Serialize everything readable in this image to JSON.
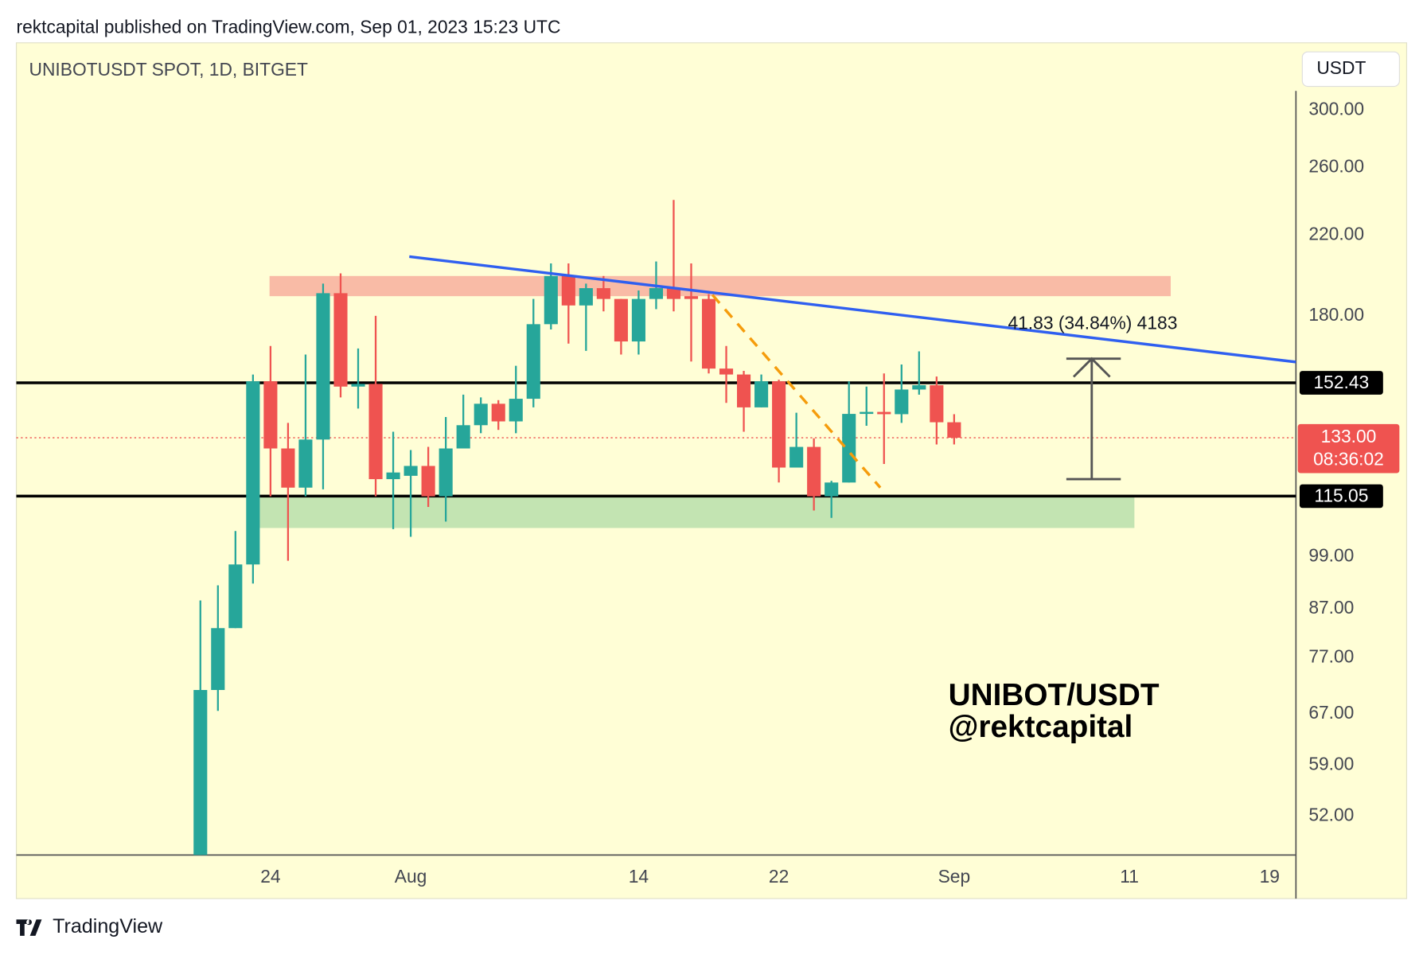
{
  "header": "rektcapital published on TradingView.com, Sep 01, 2023 15:23 UTC",
  "footer": "TradingView",
  "chart_data": {
    "type": "candlestick",
    "title": "UNIBOTUSDT SPOT, 1D, BITGET",
    "currency": "USDT",
    "watermark": [
      "UNIBOT/USDT",
      "@rektcapital"
    ],
    "log_scale": true,
    "grid": false,
    "up_color": "#26a69a",
    "down_color": "#ef5350",
    "categories": [
      null,
      null,
      null,
      null,
      null,
      null,
      null,
      null,
      null,
      null,
      null,
      null,
      null,
      null,
      "24",
      null,
      null,
      null,
      null,
      null,
      null,
      null,
      "Aug",
      null,
      null,
      null,
      null,
      null,
      null,
      null,
      null,
      null,
      null,
      null,
      null,
      "14",
      null,
      null,
      null,
      null,
      null,
      null,
      null,
      "22",
      null,
      null,
      null,
      null,
      null,
      null,
      null,
      null,
      null,
      "Sep",
      null,
      null,
      null,
      null,
      null,
      null,
      null,
      null,
      null,
      "11",
      null,
      null,
      null,
      null,
      null,
      null,
      null,
      "19",
      null
    ],
    "open": [
      null,
      null,
      null,
      null,
      null,
      null,
      null,
      null,
      null,
      null,
      45,
      71.1,
      82.9,
      97.1,
      153,
      129.5,
      117.5,
      132.4,
      190.4,
      151,
      152,
      120,
      121,
      124,
      115,
      129.5,
      137.2,
      144.7,
      138.5,
      146.5,
      176.3,
      198.7,
      184.7,
      192.8,
      187.7,
      168.9,
      187.7,
      192.8,
      189,
      187.7,
      157.9,
      155.6,
      143.4,
      153,
      123.5,
      130,
      115,
      119,
      141.1,
      141.8,
      141,
      149.9,
      151.5,
      138.2,
      null,
      null,
      null,
      null,
      null,
      null,
      null,
      null,
      null,
      null,
      null,
      null,
      null,
      null,
      null,
      null,
      null,
      null,
      null
    ],
    "high": [
      null,
      null,
      null,
      null,
      null,
      null,
      null,
      null,
      null,
      null,
      88.8,
      92.2,
      105.5,
      155.6,
      167,
      138,
      163.5,
      195,
      200,
      166,
      180,
      135,
      129,
      130,
      140,
      148,
      147,
      146,
      159,
      187.7,
      205,
      205,
      195,
      198.7,
      187.7,
      191.7,
      206,
      240,
      205,
      190,
      167,
      157,
      155.6,
      153.6,
      141.5,
      132.8,
      119.5,
      153,
      151,
      156,
      159.5,
      164.8,
      154.8,
      141,
      null,
      null,
      null,
      null,
      null,
      null,
      null,
      null,
      null,
      null,
      null,
      null,
      null,
      null,
      null,
      null,
      null,
      null,
      null
    ],
    "low": [
      null,
      null,
      null,
      null,
      null,
      null,
      null,
      null,
      null,
      null,
      45,
      67.5,
      82.9,
      92.6,
      115,
      98,
      115,
      117,
      147,
      143,
      115,
      106,
      104,
      112,
      108,
      129.5,
      134.5,
      135.6,
      134.5,
      143.4,
      174,
      168,
      165,
      182,
      163.5,
      163.5,
      183,
      182,
      160.7,
      156,
      145,
      135,
      143.4,
      119,
      123.5,
      111,
      109,
      119,
      137,
      124.6,
      138,
      148,
      130.8,
      130.8,
      null,
      null,
      null,
      null,
      null,
      null,
      null,
      null,
      null,
      null,
      null,
      null,
      null,
      null,
      null,
      null,
      null,
      null,
      null
    ],
    "close": [
      null,
      null,
      null,
      null,
      null,
      null,
      null,
      null,
      null,
      null,
      71.1,
      82.9,
      97.1,
      153,
      129.5,
      117.5,
      132.4,
      190.4,
      151,
      152,
      120,
      122,
      124,
      115,
      129.5,
      137.2,
      144.7,
      138.5,
      146.5,
      176.3,
      198.7,
      184.7,
      192.8,
      187.7,
      168.9,
      187.7,
      192.8,
      187.7,
      187.7,
      157.9,
      155.6,
      143.4,
      153,
      123.5,
      130,
      115,
      119,
      141.1,
      141.8,
      141,
      149.9,
      151.5,
      138.2,
      133,
      null,
      null,
      null,
      null,
      null,
      null,
      null,
      null,
      null,
      null,
      null,
      null,
      null,
      null,
      null,
      null,
      null,
      null,
      null
    ],
    "ylim": [
      47.2,
      314.6
    ],
    "yticks": [
      {
        "value": 300,
        "label": "300.00"
      },
      {
        "value": 260,
        "label": "260.00"
      },
      {
        "value": 220,
        "label": "220.00"
      },
      {
        "value": 180,
        "label": "180.00"
      },
      {
        "value": 99,
        "label": "99.00"
      },
      {
        "value": 87,
        "label": "87.00"
      },
      {
        "value": 77,
        "label": "77.00"
      },
      {
        "value": 67,
        "label": "67.00"
      },
      {
        "value": 59,
        "label": "59.00"
      },
      {
        "value": 52,
        "label": "52.00"
      }
    ],
    "horizontal_lines": [
      {
        "value": 152.43,
        "color": "#000000"
      },
      {
        "value": 115.05,
        "color": "#000000"
      }
    ],
    "last_price": {
      "value": 133,
      "label": "133.00",
      "countdown": "08:36:02",
      "color": "#ef5350"
    },
    "zones": [
      {
        "top": 198.7,
        "bottom": 189,
        "color": "#f9bba6"
      },
      {
        "top": 115,
        "bottom": 106.3,
        "color": "#c3e4b2"
      }
    ],
    "trendline": {
      "from": 208.5,
      "to": 160.5,
      "color": "#2f5ff0"
    },
    "dashed_line": {
      "from": 189.6,
      "to": 117.5,
      "color": "#f59c0c"
    },
    "measure": {
      "from": 120,
      "to": 161.83,
      "label": "41.83 (34.84%) 4183",
      "color": "#555555"
    }
  }
}
